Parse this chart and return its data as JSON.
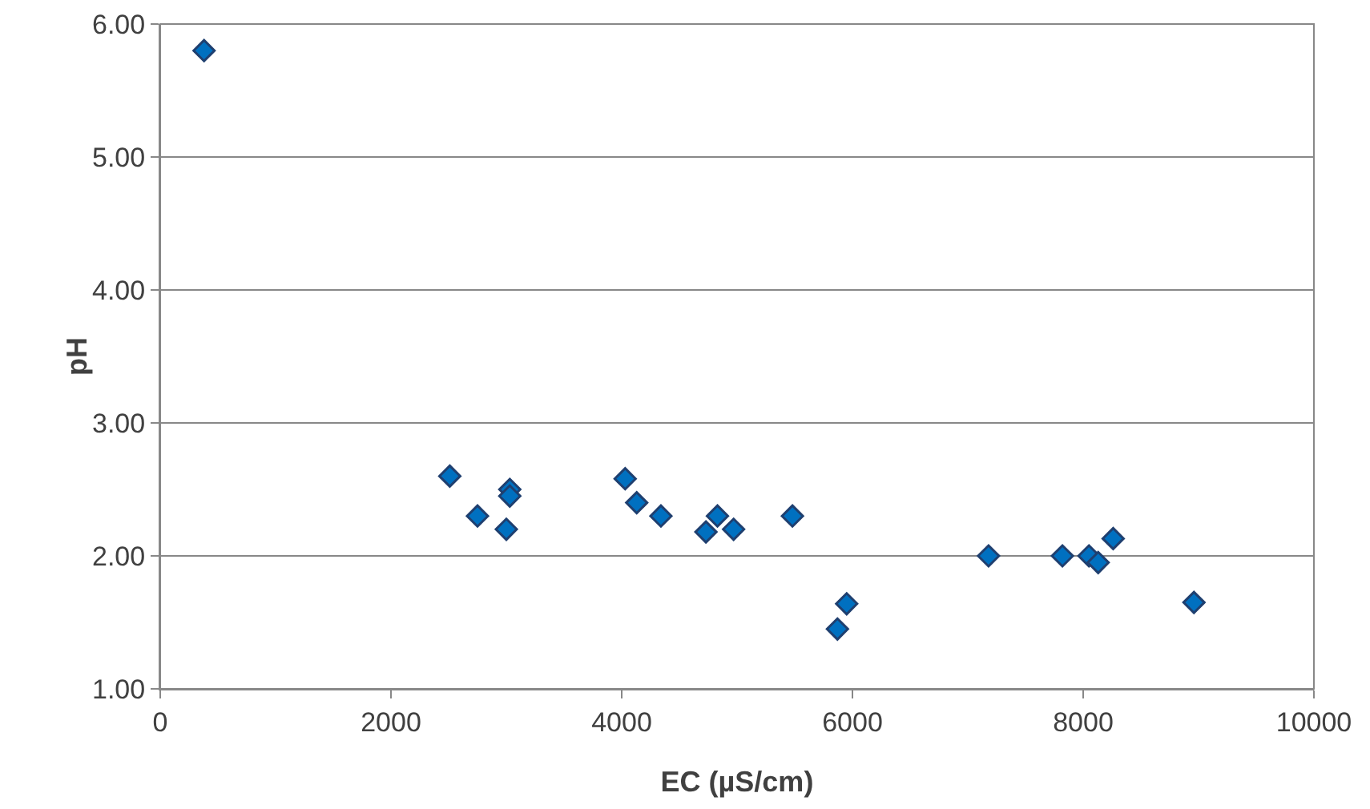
{
  "chart_data": {
    "type": "scatter",
    "xlabel": "EC (µS/cm)",
    "ylabel": "pH",
    "x": [
      380,
      2510,
      2750,
      3000,
      3030,
      3030,
      4030,
      4130,
      4340,
      4730,
      4830,
      4970,
      5480,
      5870,
      5950,
      7180,
      7820,
      8050,
      8130,
      8260,
      8960
    ],
    "series": [
      {
        "color": "#0070c0",
        "values": [
          5.8,
          2.6,
          2.3,
          2.2,
          2.5,
          2.45,
          2.58,
          2.4,
          2.3,
          2.18,
          2.3,
          2.2,
          2.3,
          1.45,
          1.64,
          2.0,
          2.0,
          2.0,
          1.95,
          2.13,
          1.65
        ]
      }
    ],
    "xlim": [
      0,
      10000
    ],
    "xticks": [
      0,
      2000,
      4000,
      6000,
      8000,
      10000
    ],
    "ylim": [
      1,
      6
    ],
    "yticks": [
      {
        "value": 1,
        "label": "1.00"
      },
      {
        "value": 2,
        "label": "2.00"
      },
      {
        "value": 3,
        "label": "3.00"
      },
      {
        "value": 4,
        "label": "4.00"
      },
      {
        "value": 5,
        "label": "5.00"
      },
      {
        "value": 6,
        "label": "6.00"
      }
    ],
    "grid": "y",
    "marker": "diamond"
  }
}
